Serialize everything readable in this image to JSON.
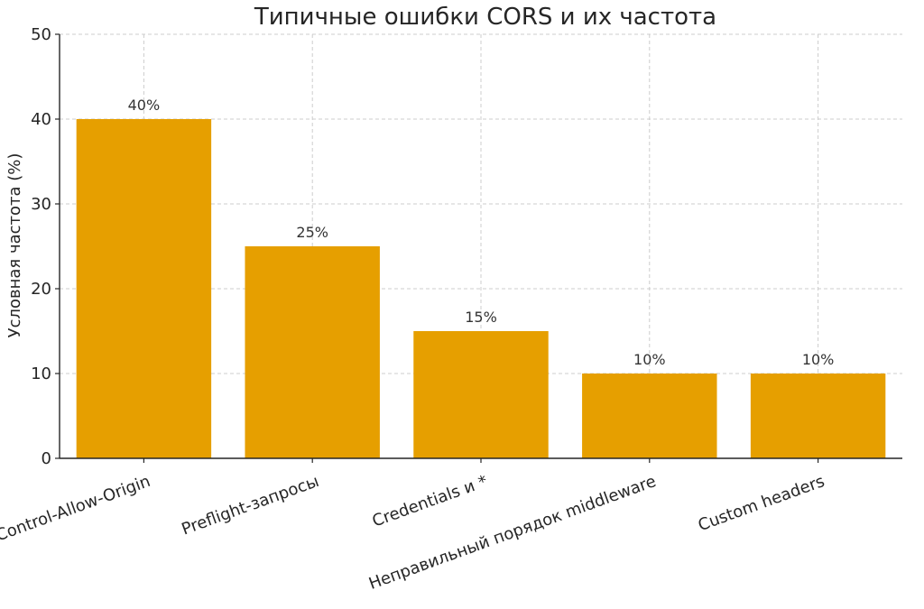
{
  "chart_data": {
    "type": "bar",
    "title": "Типичные ошибки CORS и их частота",
    "xlabel": "",
    "ylabel": "Условная частота (%)",
    "categories": [
      "Нет Access-Control-Allow-Origin",
      "Preflight-запросы",
      "Credentials и *",
      "Неправильный порядок middleware",
      "Custom headers"
    ],
    "values": [
      40,
      25,
      15,
      10,
      10
    ],
    "data_labels": [
      "40%",
      "25%",
      "15%",
      "10%",
      "10%"
    ],
    "ylim": [
      0,
      50
    ],
    "yticks": [
      0,
      10,
      20,
      30,
      40,
      50
    ],
    "grid": true,
    "bar_color": "#E69F00"
  }
}
